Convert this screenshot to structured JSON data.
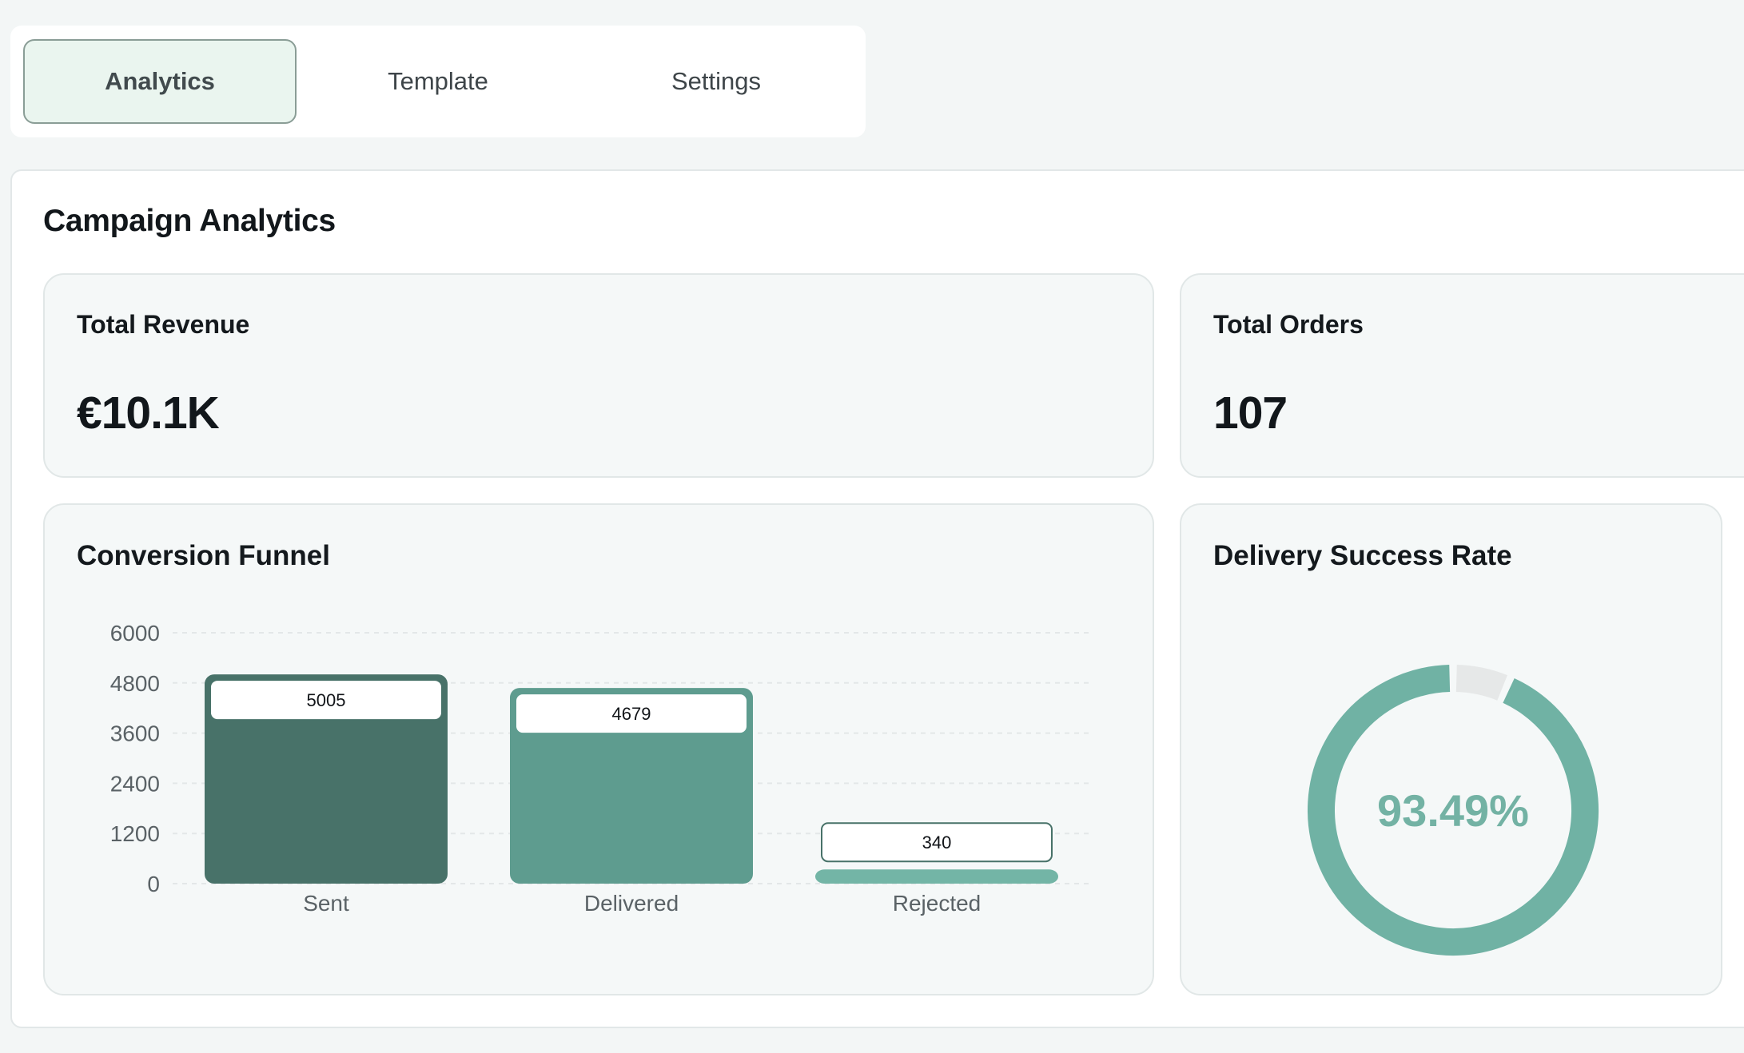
{
  "tabs": [
    {
      "label": "Analytics",
      "active": true
    },
    {
      "label": "Template",
      "active": false
    },
    {
      "label": "Settings",
      "active": false
    }
  ],
  "page_title": "Campaign Analytics",
  "kpis": {
    "revenue": {
      "label": "Total Revenue",
      "value": "€10.1K"
    },
    "orders": {
      "label": "Total Orders",
      "value": "107"
    }
  },
  "funnel": {
    "title": "Conversion Funnel"
  },
  "delivery": {
    "title": "Delivery Success Rate",
    "value_label": "93.49%"
  },
  "chart_data": [
    {
      "type": "bar",
      "title": "Conversion Funnel",
      "categories": [
        "Sent",
        "Delivered",
        "Rejected"
      ],
      "values": [
        5005,
        4679,
        340
      ],
      "value_labels": [
        "5005",
        "4679",
        "340"
      ],
      "y_ticks": [
        "0",
        "1200",
        "2400",
        "3600",
        "4800",
        "6000"
      ],
      "ylim": [
        0,
        6000
      ],
      "grid": true,
      "colors": [
        "#487269",
        "#5e9c8f",
        "#73b5a6"
      ]
    },
    {
      "type": "pie",
      "style": "donut",
      "title": "Delivery Success Rate",
      "center_label": "93.49%",
      "segments": [
        {
          "label": "Delivered",
          "value": 93.49,
          "color": "#70b2a4"
        },
        {
          "label": "Not delivered",
          "value": 6.51,
          "color": "#e6e8e8"
        }
      ]
    }
  ]
}
